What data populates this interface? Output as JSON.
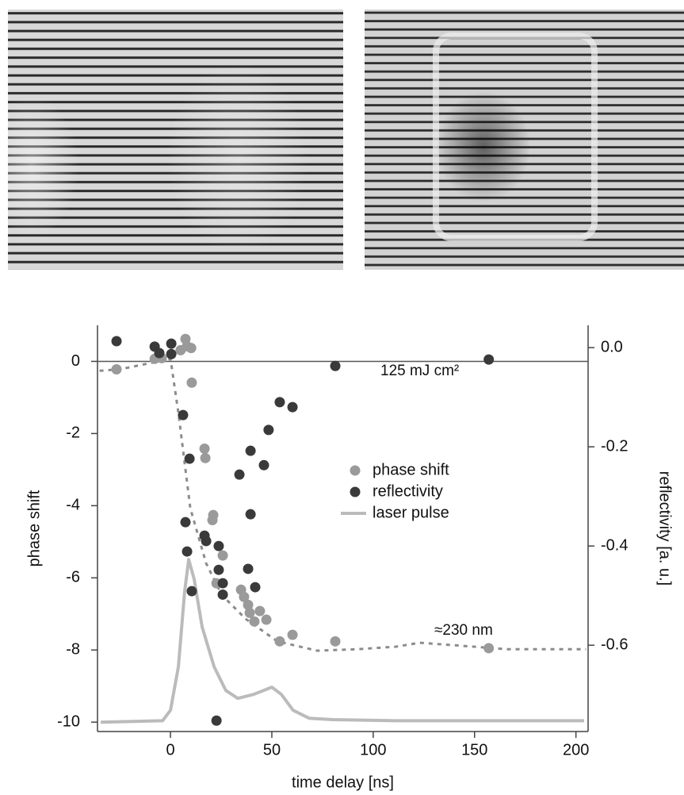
{
  "chart_data": {
    "type": "scatter",
    "xlabel": "time delay [ns]",
    "ylabel": "phase shift",
    "y2label": "reflectivity [a. u.]",
    "xlim": [
      -36,
      206
    ],
    "ylim": [
      -10.26,
      1.0
    ],
    "y2lim": [
      -0.774,
      0.045
    ],
    "xticks": [
      0,
      50,
      100,
      150,
      200
    ],
    "yticks": [
      0,
      -2,
      -4,
      -6,
      -8,
      -10
    ],
    "y2ticks": [
      {
        "value": 0,
        "label": "0.0"
      },
      -0.2,
      -0.4,
      -0.6
    ],
    "zero_line": true,
    "legend": "center",
    "annotations": [
      "125 mJ cm²",
      "≈230 nm"
    ],
    "series": [
      {
        "name": "phase shift",
        "color": "#9a9a9a",
        "mode": "markers",
        "axis": "y",
        "x": [
          -26.6,
          -7.8,
          -4.3,
          5,
          7.4,
          8.2,
          10.2,
          10.5,
          16.8,
          17.2,
          20.7,
          21.1,
          22.7,
          25.8,
          34.8,
          36.3,
          38.3,
          39.1,
          41.4,
          44.1,
          47.3,
          53.9,
          60.2,
          81.3,
          157
        ],
        "values": [
          -0.22,
          0.07,
          0.09,
          0.31,
          0.62,
          0.42,
          0.37,
          -0.59,
          -2.42,
          -2.68,
          -4.4,
          -4.26,
          -6.15,
          -5.38,
          -6.33,
          -6.53,
          -6.75,
          -6.97,
          -7.21,
          -6.92,
          -7.16,
          -7.76,
          -7.58,
          -7.76,
          -7.95
        ]
      },
      {
        "name": "reflectivity",
        "color": "#3a3a3a",
        "mode": "markers",
        "axis": "y2",
        "x": [
          -26.6,
          -7.8,
          -5.5,
          0.4,
          0.4,
          6.2,
          7.4,
          8.2,
          9.4,
          10.5,
          16.8,
          17.6,
          22.7,
          23.8,
          23.8,
          25.8,
          25.8,
          34,
          38.3,
          39.5,
          39.5,
          41.8,
          46.1,
          48.4,
          53.9,
          60.2,
          81.3,
          157
        ],
        "values": [
          0.013,
          0.002,
          -0.011,
          0.008,
          -0.013,
          -0.136,
          -0.352,
          -0.411,
          -0.224,
          -0.491,
          -0.379,
          -0.39,
          -0.752,
          -0.4,
          -0.448,
          -0.475,
          -0.498,
          -0.256,
          -0.446,
          -0.208,
          -0.336,
          -0.483,
          -0.237,
          -0.166,
          -0.11,
          -0.12,
          -0.037,
          -0.024
        ]
      },
      {
        "name": "laser pulse",
        "color": "#bbbbbb",
        "mode": "line",
        "axis": "y",
        "x": [
          -34.4,
          -3.9,
          0,
          3.9,
          7,
          9,
          11.7,
          15.6,
          21.5,
          27.3,
          33.2,
          41,
          50,
          54.7,
          60.5,
          68.4,
          80,
          111,
          204
        ],
        "values": [
          -10,
          -9.96,
          -9.67,
          -8.46,
          -6.37,
          -5.49,
          -6.04,
          -7.36,
          -8.46,
          -9.12,
          -9.34,
          -9.23,
          -9.03,
          -9.23,
          -9.67,
          -9.89,
          -9.93,
          -9.96,
          -9.96
        ]
      },
      {
        "color": "#8c8c8c",
        "mode": "dashed",
        "axis": "y",
        "x": [
          -35,
          -25,
          -6,
          0,
          3.9,
          9.8,
          17.6,
          25.4,
          37.1,
          52.7,
          72.3,
          91.8,
          111,
          123,
          150,
          166,
          205
        ],
        "values": [
          -0.26,
          -0.22,
          0,
          0.07,
          -1.43,
          -4.07,
          -5.6,
          -6.48,
          -7.14,
          -7.76,
          -8.02,
          -7.98,
          -7.91,
          -7.8,
          -7.91,
          -7.98,
          -7.98
        ]
      }
    ]
  }
}
